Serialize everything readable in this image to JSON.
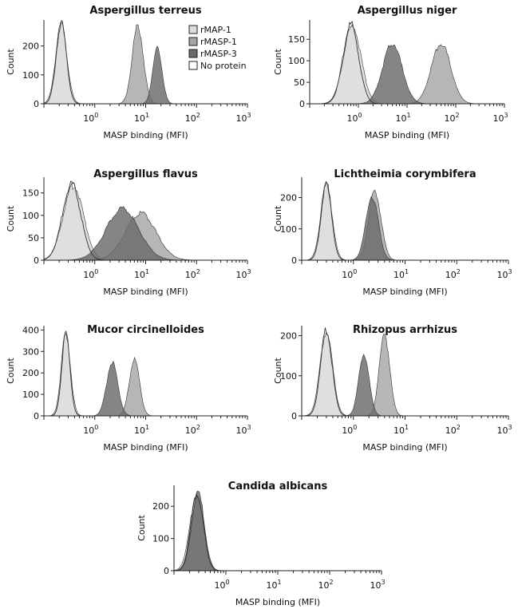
{
  "x_axis_label": "MASP binding (MFI)",
  "y_axis_label": "Count",
  "x_tick_labels": [
    {
      "base": "10",
      "exp": "0"
    },
    {
      "base": "10",
      "exp": "1"
    },
    {
      "base": "10",
      "exp": "2"
    },
    {
      "base": "10",
      "exp": "3"
    }
  ],
  "colors": {
    "rMAP-1": "#dcdcdc",
    "rMASP-1": "#a6a6a6",
    "rMASP-3": "#6a6a6a",
    "No protein": "#ffffff",
    "outline": "#333333"
  },
  "legend": {
    "placement": "top-right of first panel",
    "items": [
      {
        "label": "rMAP-1",
        "color": "#dcdcdc"
      },
      {
        "label": "rMASP-1",
        "color": "#a6a6a6"
      },
      {
        "label": "rMASP-3",
        "color": "#6a6a6a"
      },
      {
        "label": "No protein",
        "color": "#ffffff"
      }
    ]
  },
  "chart_data": [
    {
      "type": "area",
      "title": "Aspergillus terreus",
      "xlabel": "MASP binding (MFI)",
      "ylabel": "Count",
      "xscale": "log",
      "xlim": [
        0.1,
        1000
      ],
      "ylim": [
        0,
        290
      ],
      "yticks": [
        0,
        100,
        200
      ],
      "series": [
        {
          "name": "No protein",
          "peak_mfi": 0.22,
          "peak_count": 280,
          "width_decades": 0.1
        },
        {
          "name": "rMAP-1",
          "peak_mfi": 0.22,
          "peak_count": 275,
          "width_decades": 0.11
        },
        {
          "name": "rMASP-1",
          "peak_mfi": 7,
          "peak_count": 270,
          "width_decades": 0.11
        },
        {
          "name": "rMASP-3",
          "peak_mfi": 17,
          "peak_count": 195,
          "width_decades": 0.09
        }
      ]
    },
    {
      "type": "area",
      "title": "Aspergillus niger",
      "xlabel": "MASP binding (MFI)",
      "ylabel": "Count",
      "xscale": "log",
      "xlim": [
        0.1,
        1000
      ],
      "ylim": [
        0,
        195
      ],
      "yticks": [
        0,
        50,
        100,
        150
      ],
      "series": [
        {
          "name": "No protein",
          "peak_mfi": 0.7,
          "peak_count": 185,
          "width_decades": 0.16
        },
        {
          "name": "rMAP-1",
          "peak_mfi": 0.75,
          "peak_count": 180,
          "width_decades": 0.18
        },
        {
          "name": "rMASP-1",
          "peak_mfi": 50,
          "peak_count": 140,
          "width_decades": 0.2
        },
        {
          "name": "rMASP-3",
          "peak_mfi": 5,
          "peak_count": 140,
          "width_decades": 0.2
        }
      ]
    },
    {
      "type": "area",
      "title": "Aspergillus flavus",
      "xlabel": "MASP binding (MFI)",
      "ylabel": "Count",
      "xscale": "log",
      "xlim": [
        0.1,
        1000
      ],
      "ylim": [
        0,
        185
      ],
      "yticks": [
        0,
        50,
        100,
        150
      ],
      "series": [
        {
          "name": "No protein",
          "peak_mfi": 0.35,
          "peak_count": 170,
          "width_decades": 0.18
        },
        {
          "name": "rMAP-1",
          "peak_mfi": 0.38,
          "peak_count": 165,
          "width_decades": 0.2
        },
        {
          "name": "rMASP-1",
          "peak_mfi": 8,
          "peak_count": 105,
          "width_decades": 0.3
        },
        {
          "name": "rMASP-3",
          "peak_mfi": 3.5,
          "peak_count": 115,
          "width_decades": 0.32
        }
      ]
    },
    {
      "type": "area",
      "title": "Lichtheimia corymbifera",
      "xlabel": "MASP binding (MFI)",
      "ylabel": "Count",
      "xscale": "log",
      "xlim": [
        0.1,
        1000
      ],
      "ylim": [
        0,
        265
      ],
      "yticks": [
        0,
        100,
        200
      ],
      "series": [
        {
          "name": "No protein",
          "peak_mfi": 0.3,
          "peak_count": 245,
          "width_decades": 0.1
        },
        {
          "name": "rMAP-1",
          "peak_mfi": 0.3,
          "peak_count": 240,
          "width_decades": 0.11
        },
        {
          "name": "rMASP-1",
          "peak_mfi": 2.6,
          "peak_count": 220,
          "width_decades": 0.12
        },
        {
          "name": "rMASP-3",
          "peak_mfi": 2.3,
          "peak_count": 205,
          "width_decades": 0.12
        }
      ]
    },
    {
      "type": "area",
      "title": "Mucor circinelloides",
      "xlabel": "MASP binding (MFI)",
      "ylabel": "Count",
      "xscale": "log",
      "xlim": [
        0.1,
        1000
      ],
      "ylim": [
        0,
        420
      ],
      "yticks": [
        0,
        100,
        200,
        300,
        400
      ],
      "series": [
        {
          "name": "No protein",
          "peak_mfi": 0.27,
          "peak_count": 385,
          "width_decades": 0.08
        },
        {
          "name": "rMAP-1",
          "peak_mfi": 0.27,
          "peak_count": 380,
          "width_decades": 0.09
        },
        {
          "name": "rMASP-1",
          "peak_mfi": 6,
          "peak_count": 265,
          "width_decades": 0.1
        },
        {
          "name": "rMASP-3",
          "peak_mfi": 2.2,
          "peak_count": 250,
          "width_decades": 0.11
        }
      ]
    },
    {
      "type": "area",
      "title": "Rhizopus arrhizus",
      "xlabel": "MASP binding (MFI)",
      "ylabel": "Count",
      "xscale": "log",
      "xlim": [
        0.1,
        1000
      ],
      "ylim": [
        0,
        225
      ],
      "yticks": [
        0,
        100,
        200
      ],
      "series": [
        {
          "name": "No protein",
          "peak_mfi": 0.3,
          "peak_count": 215,
          "width_decades": 0.11
        },
        {
          "name": "rMAP-1",
          "peak_mfi": 0.3,
          "peak_count": 210,
          "width_decades": 0.12
        },
        {
          "name": "rMASP-1",
          "peak_mfi": 4,
          "peak_count": 205,
          "width_decades": 0.1
        },
        {
          "name": "rMASP-3",
          "peak_mfi": 1.6,
          "peak_count": 155,
          "width_decades": 0.1
        }
      ]
    },
    {
      "type": "area",
      "title": "Candida albicans",
      "xlabel": "MASP binding (MFI)",
      "ylabel": "Count",
      "xscale": "log",
      "xlim": [
        0.1,
        1000
      ],
      "ylim": [
        0,
        265
      ],
      "yticks": [
        0,
        100,
        200
      ],
      "series": [
        {
          "name": "No protein",
          "peak_mfi": 0.28,
          "peak_count": 240,
          "width_decades": 0.12
        },
        {
          "name": "rMAP-1",
          "peak_mfi": 0.27,
          "peak_count": 225,
          "width_decades": 0.13
        },
        {
          "name": "rMASP-1",
          "peak_mfi": 0.28,
          "peak_count": 235,
          "width_decades": 0.12
        },
        {
          "name": "rMASP-3",
          "peak_mfi": 0.29,
          "peak_count": 245,
          "width_decades": 0.12
        }
      ]
    }
  ]
}
